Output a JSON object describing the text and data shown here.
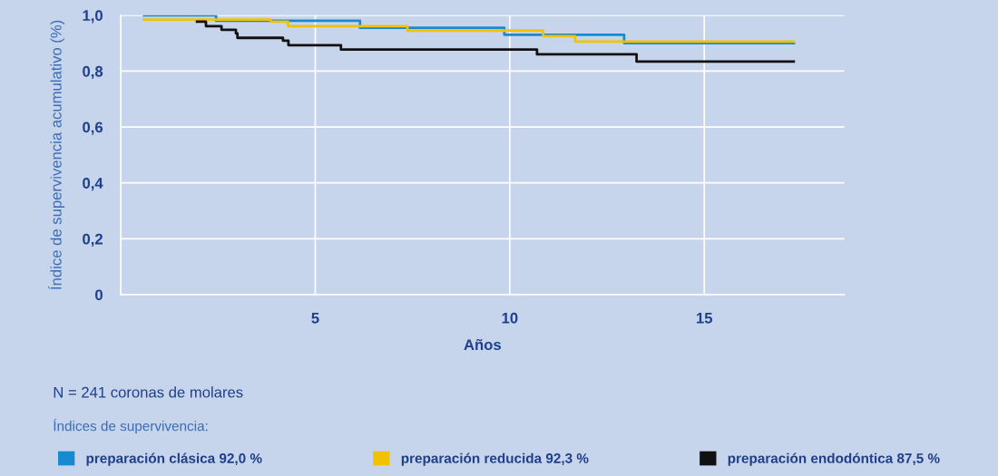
{
  "chart_data": {
    "type": "step",
    "xlabel": "Años",
    "ylabel": "Índice de supervivencia acumulativo (%)",
    "xlim": [
      0,
      18.6
    ],
    "ylim": [
      0,
      1.0
    ],
    "xticks": [
      5,
      10,
      15
    ],
    "yticks": [
      {
        "value": 0,
        "label": "0"
      },
      {
        "value": 0.2,
        "label": "0,2"
      },
      {
        "value": 0.4,
        "label": "0,4"
      },
      {
        "value": 0.6,
        "label": "0,6"
      },
      {
        "value": 0.8,
        "label": "0,8"
      },
      {
        "value": 1.0,
        "label": "1,0"
      }
    ],
    "grid": true,
    "legend": "bottom",
    "marker": "none",
    "line_style": "solid",
    "annotations": [
      "N = 241 coronas de molares",
      "Índices de supervivencia:"
    ],
    "series": [
      {
        "name": "preparación clásica 92,0 %",
        "color": "#1a8ad0",
        "x": [
          0.6,
          2.45,
          6.15,
          9.86,
          12.94,
          17.3
        ],
        "values": [
          1.0,
          0.98,
          0.955,
          0.93,
          0.9,
          0.9
        ]
      },
      {
        "name": "preparación reducida 92,3 %",
        "color": "#f2c200",
        "x": [
          0.6,
          3.85,
          4.3,
          7.37,
          10.86,
          11.68,
          17.3
        ],
        "values": [
          0.984,
          0.977,
          0.961,
          0.945,
          0.925,
          0.906,
          0.906
        ]
      },
      {
        "name": "preparación endodóntica 87,5 %",
        "color": "#111111",
        "x": [
          1.96,
          2.19,
          2.59,
          2.96,
          3.0,
          4.17,
          4.31,
          5.66,
          10.7,
          13.26,
          17.3
        ],
        "values": [
          0.977,
          0.961,
          0.948,
          0.935,
          0.919,
          0.909,
          0.893,
          0.877,
          0.86,
          0.834,
          0.834
        ]
      }
    ]
  }
}
